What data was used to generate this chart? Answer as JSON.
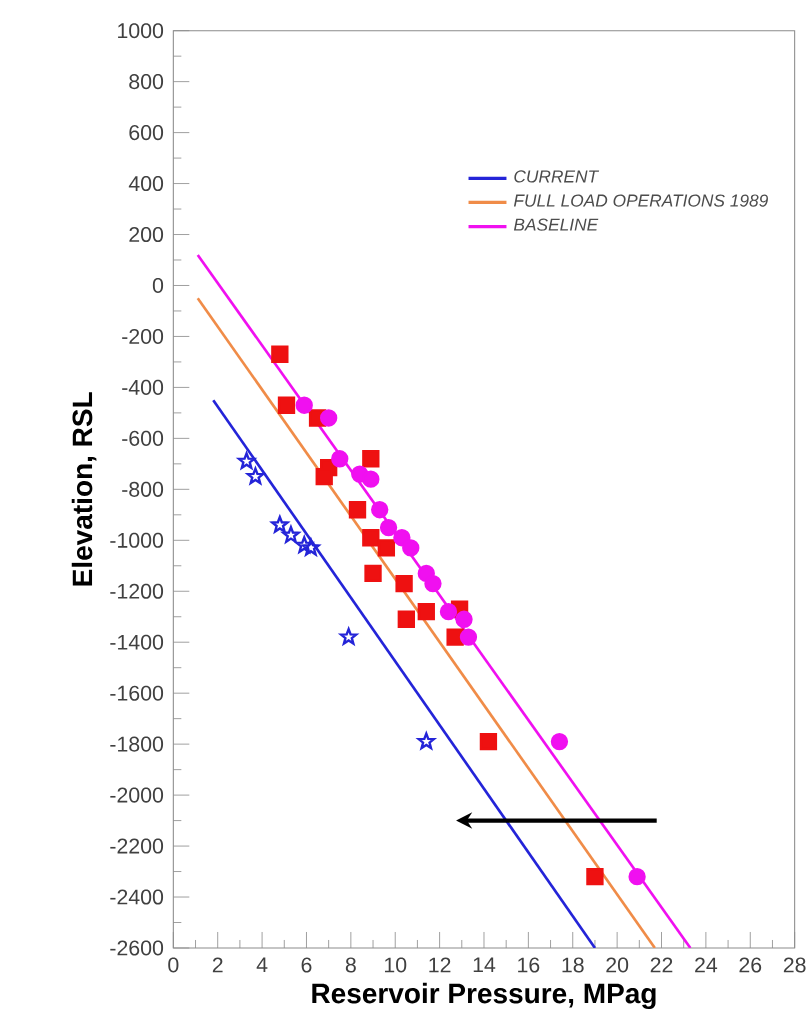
{
  "chart_data": {
    "type": "scatter",
    "xlabel": "Reservoir Pressure, MPag",
    "ylabel": "Elevation, RSL",
    "xlim": [
      0,
      28
    ],
    "xticks": [
      0,
      2,
      4,
      6,
      8,
      10,
      12,
      14,
      16,
      18,
      20,
      22,
      24,
      26,
      28
    ],
    "ylim": [
      -2600,
      1000
    ],
    "yticks": [
      -2600,
      -2400,
      -2200,
      -2000,
      -1800,
      -1600,
      -1400,
      -1200,
      -1000,
      -800,
      -600,
      -400,
      -200,
      0,
      200,
      400,
      600,
      800,
      1000
    ],
    "grid": false,
    "legend": "top right",
    "series": [
      {
        "name": "CURRENT",
        "type": "line",
        "color": "#2424d8",
        "x": [
          1.8,
          19.0
        ],
        "values": [
          -450,
          -2600
        ]
      },
      {
        "name": "FULL LOAD OPERATIONS 1989",
        "type": "line",
        "color": "#f08c48",
        "x": [
          1.1,
          21.7
        ],
        "values": [
          -50,
          -2600
        ]
      },
      {
        "name": "BASELINE",
        "type": "line",
        "color": "#f010f0",
        "x": [
          1.1,
          23.3
        ],
        "values": [
          120,
          -2600
        ]
      },
      {
        "type": "scatter",
        "marker": "star",
        "color": "#2424d8",
        "x": [
          3.3,
          3.7,
          4.8,
          5.3,
          5.9,
          6.2,
          7.9,
          11.4
        ],
        "values": [
          -690,
          -750,
          -940,
          -980,
          -1020,
          -1030,
          -1380,
          -1790
        ]
      },
      {
        "type": "scatter",
        "marker": "square",
        "color": "#ee1111",
        "x": [
          4.8,
          5.1,
          6.5,
          7.0,
          6.8,
          8.9,
          8.3,
          8.9,
          9.6,
          9.0,
          10.4,
          10.5,
          11.4,
          12.9,
          12.7,
          14.2,
          19.0
        ],
        "values": [
          -270,
          -470,
          -520,
          -715,
          -750,
          -680,
          -880,
          -990,
          -1030,
          -1130,
          -1170,
          -1310,
          -1280,
          -1270,
          -1380,
          -1790,
          -2320
        ]
      },
      {
        "type": "scatter",
        "marker": "circle",
        "color": "#f010f0",
        "x": [
          5.9,
          7.0,
          7.5,
          8.4,
          8.9,
          9.3,
          9.7,
          10.3,
          10.7,
          11.4,
          11.7,
          12.4,
          13.1,
          13.3,
          17.4,
          20.9
        ],
        "values": [
          -470,
          -520,
          -680,
          -740,
          -760,
          -880,
          -950,
          -990,
          -1030,
          -1130,
          -1170,
          -1280,
          -1310,
          -1380,
          -1790,
          -2320
        ]
      }
    ]
  }
}
